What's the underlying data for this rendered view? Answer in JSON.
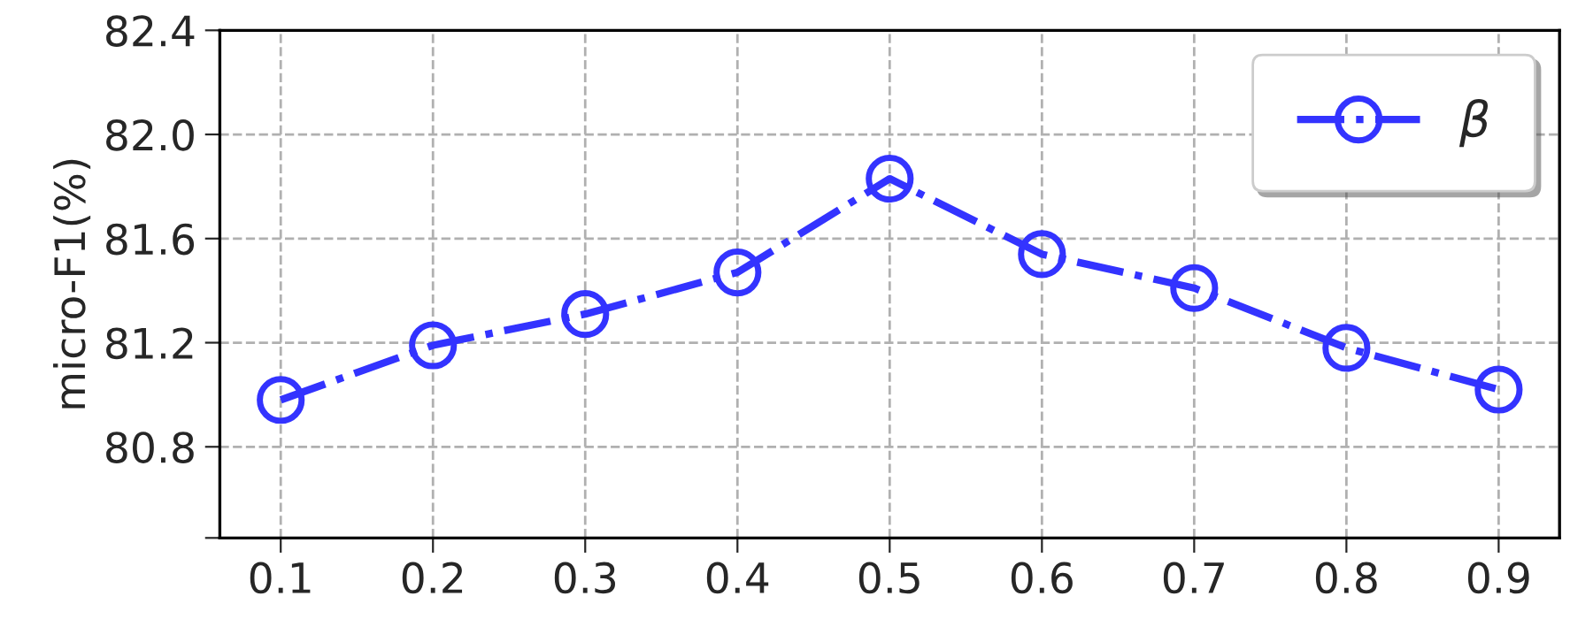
{
  "chart_data": {
    "type": "line",
    "ylabel": "micro-F1(%)",
    "x": [
      0.1,
      0.2,
      0.3,
      0.4,
      0.5,
      0.6,
      0.7,
      0.8,
      0.9
    ],
    "series": [
      {
        "name": "β",
        "color": "#3333ff",
        "values": [
          80.98,
          81.19,
          81.31,
          81.47,
          81.83,
          81.54,
          81.41,
          81.18,
          81.02
        ]
      }
    ],
    "xlim": [
      0.06,
      0.94
    ],
    "xticks": [
      0.1,
      0.2,
      0.3,
      0.4,
      0.5,
      0.6,
      0.7,
      0.8,
      0.9
    ],
    "ylim": [
      80.45,
      82.4
    ],
    "yticks": [
      {
        "value": 80.45,
        "label": null
      },
      {
        "value": 80.8,
        "label": "80.8"
      },
      {
        "value": 81.2,
        "label": "81.2"
      },
      {
        "value": 81.6,
        "label": "81.6"
      },
      {
        "value": 82.0,
        "label": "82.0"
      },
      {
        "value": 82.4,
        "label": "82.4"
      }
    ],
    "grid": true,
    "legend": "top right",
    "marker": "circle",
    "line_style": "dashdot"
  }
}
